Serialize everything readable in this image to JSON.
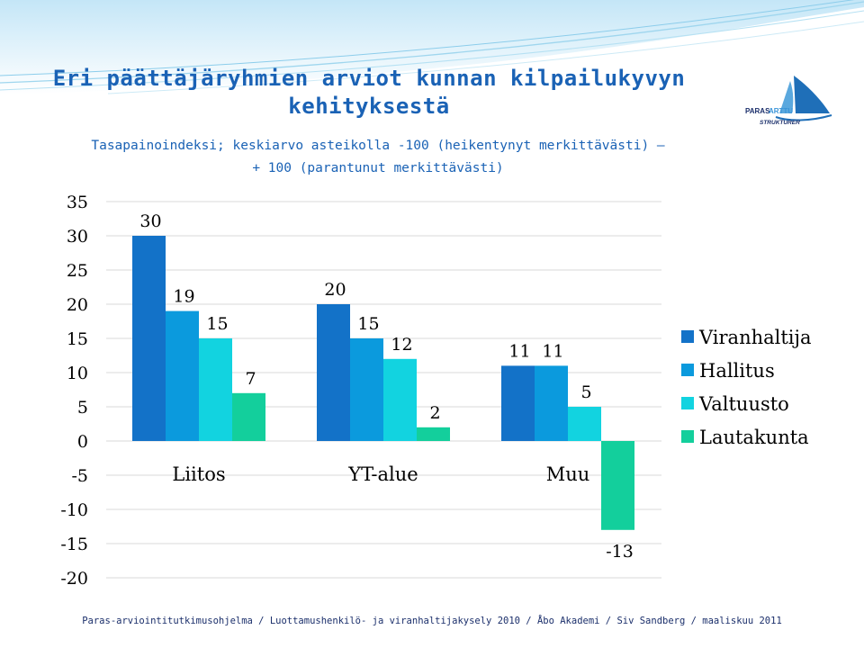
{
  "header": {
    "title": "Eri päättäjäryhmien arviot kunnan kilpailukyvyn kehityksestä",
    "subtitle_line1": "Tasapainoindeksi; keskiarvo asteikolla -100 (heikentynyt merkittävästi) –",
    "subtitle_line2": "+ 100 (parantunut merkittävästi)"
  },
  "logo": {
    "line1_a": "PARAS",
    "line1_b": "ARTTU",
    "line2": "STRUKTURER",
    "icon": "sailboat-icon"
  },
  "footer": {
    "text": "Paras-arviointitutkimusohjelma / Luottamushenkilö- ja viranhaltijakysely 2010 / Åbo Akademi / Siv Sandberg / maaliskuu 2011"
  },
  "colors": {
    "title": "#1a62b5",
    "Viranhaltija": "#1372c8",
    "Hallitus": "#0b9add",
    "Valtuusto": "#12d3e0",
    "Lautakunta": "#13cf9c"
  },
  "chart_data": {
    "type": "bar",
    "categories": [
      "Liitos",
      "YT-alue",
      "Muu"
    ],
    "series": [
      {
        "name": "Viranhaltija",
        "values": [
          30,
          20,
          11
        ]
      },
      {
        "name": "Hallitus",
        "values": [
          19,
          15,
          11
        ]
      },
      {
        "name": "Valtuusto",
        "values": [
          15,
          12,
          5
        ]
      },
      {
        "name": "Lautakunta",
        "values": [
          7,
          2,
          -13
        ]
      }
    ],
    "yticks": [
      "35",
      "30",
      "25",
      "20",
      "15",
      "10",
      "5",
      "0",
      "-5",
      "-10",
      "-15",
      "-20"
    ],
    "ylim": [
      -20,
      35
    ],
    "grid": true,
    "legend_position": "right"
  }
}
